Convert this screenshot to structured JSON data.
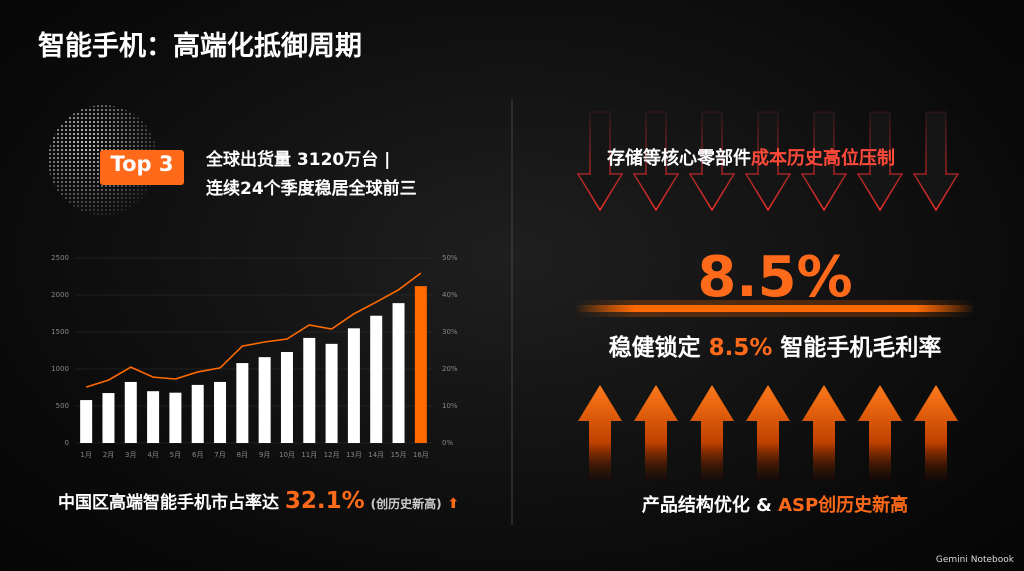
{
  "header": {
    "title": "智能手机：高端化抵御周期"
  },
  "left": {
    "badge": "Top 3",
    "line1": "全球出货量 3120万台 |",
    "line2": "连续24个季度稳居全球前三",
    "footer_text": "中国区高端智能手机市占率达",
    "footer_value": "32.1%",
    "footer_note": "(创历史新高)"
  },
  "chart_data": {
    "type": "bar_line",
    "categories": [
      "1月",
      "2月",
      "3月",
      "4月",
      "5月",
      "6月",
      "7月",
      "8月",
      "9月",
      "10月",
      "11月",
      "12月",
      "13月",
      "14月",
      "15月",
      "16月"
    ],
    "series": [
      {
        "type": "bar",
        "color": "#ffffff",
        "highlight_color": "#ff6a00",
        "values": [
          580,
          675,
          825,
          700,
          680,
          785,
          825,
          1080,
          1160,
          1230,
          1420,
          1340,
          1550,
          1720,
          1890,
          2120
        ]
      },
      {
        "type": "line",
        "axis": "y2",
        "color": "#ff6a00",
        "values": [
          15.1,
          17,
          20.5,
          17.8,
          17.3,
          19.2,
          20.3,
          26.2,
          27.3,
          28.1,
          31.9,
          30.8,
          34.9,
          38.1,
          41.4,
          45.9
        ]
      }
    ],
    "ylim": [
      0,
      2500
    ],
    "yticks": [
      0,
      500,
      1000,
      1500,
      2000,
      2500
    ],
    "y2lim": [
      0,
      50
    ],
    "y2ticks": [
      {
        "value": 0,
        "label": "0%"
      },
      {
        "value": 10,
        "label": "10%"
      },
      {
        "value": 20,
        "label": "20%"
      },
      {
        "value": 30,
        "label": "30%"
      },
      {
        "value": 40,
        "label": "40%"
      },
      {
        "value": 50,
        "label": "50%"
      }
    ],
    "grid": true
  },
  "right": {
    "top_text": "存储等核心零部件",
    "top_highlight": "成本历史高位压制",
    "big_value": "8.5%",
    "mid_text1": "稳健锁定",
    "mid_value": "8.5%",
    "mid_text2": "智能手机毛利率",
    "bottom_text": "产品结构优化 &",
    "bottom_highlight": "ASP创历史新高"
  },
  "footer": {
    "brand": "Gemini Notebook"
  }
}
